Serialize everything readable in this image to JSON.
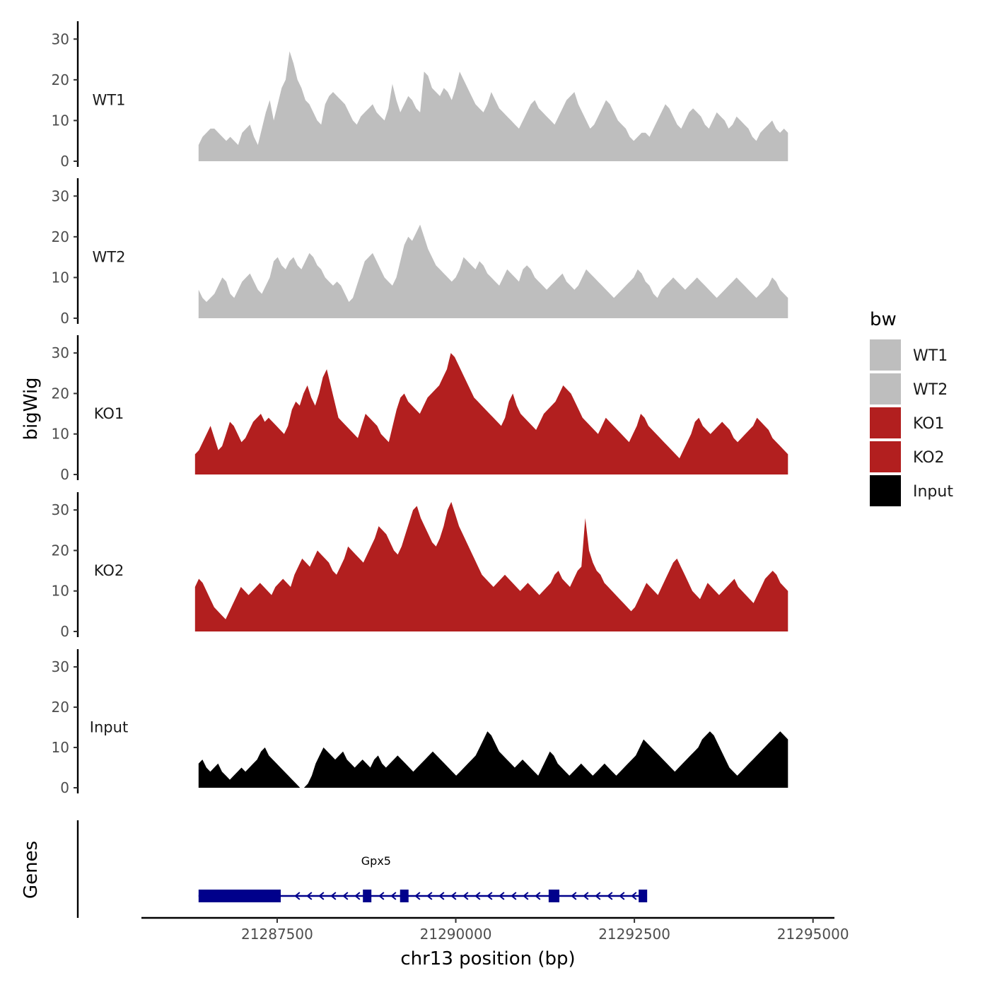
{
  "chart_data": {
    "type": "area",
    "title": "",
    "ylabel_top": "bigWig",
    "ylabel_genes": "Genes",
    "xlabel": "chr13 position (bp)",
    "xlim": [
      21285600,
      21295300
    ],
    "ylim": [
      0,
      33
    ],
    "y_ticks": [
      0,
      10,
      20,
      30
    ],
    "x_ticks": [
      21287500,
      21290000,
      21292500,
      21295000
    ],
    "x_tick_labels": [
      "21287500",
      "21290000",
      "21292500",
      "21295000"
    ],
    "legend": {
      "title": "bw",
      "position": "right",
      "entries": [
        {
          "label": "WT1",
          "color": "#bebebe"
        },
        {
          "label": "WT2",
          "color": "#bebebe"
        },
        {
          "label": "KO1",
          "color": "#b21f1f"
        },
        {
          "label": "KO2",
          "color": "#b21f1f"
        },
        {
          "label": "Input",
          "color": "#000000"
        }
      ]
    },
    "series": [
      {
        "name": "WT1",
        "color": "#bebebe",
        "x_start": 21286400,
        "x_end": 21294650,
        "values": [
          4,
          6,
          7,
          8,
          8,
          7,
          6,
          5,
          6,
          5,
          4,
          7,
          8,
          9,
          6,
          4,
          8,
          12,
          15,
          10,
          14,
          18,
          20,
          27,
          24,
          20,
          18,
          15,
          14,
          12,
          10,
          9,
          14,
          16,
          17,
          16,
          15,
          14,
          12,
          10,
          9,
          11,
          12,
          13,
          14,
          12,
          11,
          10,
          13,
          19,
          15,
          12,
          14,
          16,
          15,
          13,
          12,
          22,
          21,
          18,
          17,
          16,
          18,
          17,
          15,
          18,
          22,
          20,
          18,
          16,
          14,
          13,
          12,
          14,
          17,
          15,
          13,
          12,
          11,
          10,
          9,
          8,
          10,
          12,
          14,
          15,
          13,
          12,
          11,
          10,
          9,
          11,
          13,
          15,
          16,
          17,
          14,
          12,
          10,
          8,
          9,
          11,
          13,
          15,
          14,
          12,
          10,
          9,
          8,
          6,
          5,
          6,
          7,
          7,
          6,
          8,
          10,
          12,
          14,
          13,
          11,
          9,
          8,
          10,
          12,
          13,
          12,
          11,
          9,
          8,
          10,
          12,
          11,
          10,
          8,
          9,
          11,
          10,
          9,
          8,
          6,
          5,
          7,
          8,
          9,
          10,
          8,
          7,
          8,
          7
        ]
      },
      {
        "name": "WT2",
        "color": "#bebebe",
        "x_start": 21286400,
        "x_end": 21294650,
        "values": [
          7,
          5,
          4,
          5,
          6,
          8,
          10,
          9,
          6,
          5,
          7,
          9,
          10,
          11,
          9,
          7,
          6,
          8,
          10,
          14,
          15,
          13,
          12,
          14,
          15,
          13,
          12,
          14,
          16,
          15,
          13,
          12,
          10,
          9,
          8,
          9,
          8,
          6,
          4,
          5,
          8,
          11,
          14,
          15,
          16,
          14,
          12,
          10,
          9,
          8,
          10,
          14,
          18,
          20,
          19,
          21,
          23,
          20,
          17,
          15,
          13,
          12,
          11,
          10,
          9,
          10,
          12,
          15,
          14,
          13,
          12,
          14,
          13,
          11,
          10,
          9,
          8,
          10,
          12,
          11,
          10,
          9,
          12,
          13,
          12,
          10,
          9,
          8,
          7,
          8,
          9,
          10,
          11,
          9,
          8,
          7,
          8,
          10,
          12,
          11,
          10,
          9,
          8,
          7,
          6,
          5,
          6,
          7,
          8,
          9,
          10,
          12,
          11,
          9,
          8,
          6,
          5,
          7,
          8,
          9,
          10,
          9,
          8,
          7,
          8,
          9,
          10,
          9,
          8,
          7,
          6,
          5,
          6,
          7,
          8,
          9,
          10,
          9,
          8,
          7,
          6,
          5,
          6,
          7,
          8,
          10,
          9,
          7,
          6,
          5
        ]
      },
      {
        "name": "KO1",
        "color": "#b21f1f",
        "x_start": 21286350,
        "x_end": 21294650,
        "values": [
          5,
          6,
          8,
          10,
          12,
          9,
          6,
          7,
          10,
          13,
          12,
          10,
          8,
          9,
          11,
          13,
          14,
          15,
          13,
          14,
          13,
          12,
          11,
          10,
          12,
          16,
          18,
          17,
          20,
          22,
          19,
          17,
          20,
          24,
          26,
          22,
          18,
          14,
          13,
          12,
          11,
          10,
          9,
          12,
          15,
          14,
          13,
          12,
          10,
          9,
          8,
          12,
          16,
          19,
          20,
          18,
          17,
          16,
          15,
          17,
          19,
          20,
          21,
          22,
          24,
          26,
          30,
          29,
          27,
          25,
          23,
          21,
          19,
          18,
          17,
          16,
          15,
          14,
          13,
          12,
          14,
          18,
          20,
          17,
          15,
          14,
          13,
          12,
          11,
          13,
          15,
          16,
          17,
          18,
          20,
          22,
          21,
          20,
          18,
          16,
          14,
          13,
          12,
          11,
          10,
          12,
          14,
          13,
          12,
          11,
          10,
          9,
          8,
          10,
          12,
          15,
          14,
          12,
          11,
          10,
          9,
          8,
          7,
          6,
          5,
          4,
          6,
          8,
          10,
          13,
          14,
          12,
          11,
          10,
          11,
          12,
          13,
          12,
          11,
          9,
          8,
          9,
          10,
          11,
          12,
          14,
          13,
          12,
          11,
          9,
          8,
          7,
          6,
          5
        ]
      },
      {
        "name": "KO2",
        "color": "#b21f1f",
        "x_start": 21286350,
        "x_end": 21294650,
        "values": [
          11,
          13,
          12,
          10,
          8,
          6,
          5,
          4,
          3,
          5,
          7,
          9,
          11,
          10,
          9,
          10,
          11,
          12,
          11,
          10,
          9,
          11,
          12,
          13,
          12,
          11,
          14,
          16,
          18,
          17,
          16,
          18,
          20,
          19,
          18,
          17,
          15,
          14,
          16,
          18,
          21,
          20,
          19,
          18,
          17,
          19,
          21,
          23,
          26,
          25,
          24,
          22,
          20,
          19,
          21,
          24,
          27,
          30,
          31,
          28,
          26,
          24,
          22,
          21,
          23,
          26,
          30,
          32,
          29,
          26,
          24,
          22,
          20,
          18,
          16,
          14,
          13,
          12,
          11,
          12,
          13,
          14,
          13,
          12,
          11,
          10,
          11,
          12,
          11,
          10,
          9,
          10,
          11,
          12,
          14,
          15,
          13,
          12,
          11,
          13,
          15,
          16,
          28,
          20,
          17,
          15,
          14,
          12,
          11,
          10,
          9,
          8,
          7,
          6,
          5,
          6,
          8,
          10,
          12,
          11,
          10,
          9,
          11,
          13,
          15,
          17,
          18,
          16,
          14,
          12,
          10,
          9,
          8,
          10,
          12,
          11,
          10,
          9,
          10,
          11,
          12,
          13,
          11,
          10,
          9,
          8,
          7,
          9,
          11,
          13,
          14,
          15,
          14,
          12,
          11,
          10
        ]
      },
      {
        "name": "Input",
        "color": "#000000",
        "x_start": 21286400,
        "x_end": 21294650,
        "values": [
          6,
          7,
          5,
          4,
          5,
          6,
          4,
          3,
          2,
          3,
          4,
          5,
          4,
          5,
          6,
          7,
          9,
          10,
          8,
          7,
          6,
          5,
          4,
          3,
          2,
          1,
          0,
          0,
          1,
          3,
          6,
          8,
          10,
          9,
          8,
          7,
          8,
          9,
          7,
          6,
          5,
          6,
          7,
          6,
          5,
          7,
          8,
          6,
          5,
          6,
          7,
          8,
          7,
          6,
          5,
          4,
          5,
          6,
          7,
          8,
          9,
          8,
          7,
          6,
          5,
          4,
          3,
          4,
          5,
          6,
          7,
          8,
          10,
          12,
          14,
          13,
          11,
          9,
          8,
          7,
          6,
          5,
          6,
          7,
          6,
          5,
          4,
          3,
          5,
          7,
          9,
          8,
          6,
          5,
          4,
          3,
          4,
          5,
          6,
          5,
          4,
          3,
          4,
          5,
          6,
          5,
          4,
          3,
          4,
          5,
          6,
          7,
          8,
          10,
          12,
          11,
          10,
          9,
          8,
          7,
          6,
          5,
          4,
          5,
          6,
          7,
          8,
          9,
          10,
          12,
          13,
          14,
          13,
          11,
          9,
          7,
          5,
          4,
          3,
          4,
          5,
          6,
          7,
          8,
          9,
          10,
          11,
          12,
          13,
          14,
          13,
          12
        ]
      }
    ],
    "genes": [
      {
        "name": "Gpx5",
        "strand": "-",
        "start": 21286400,
        "end": 21292650,
        "exons": [
          [
            21286400,
            21287550
          ],
          [
            21288700,
            21288800
          ],
          [
            21289220,
            21289330
          ],
          [
            21291300,
            21291450
          ],
          [
            21292560,
            21292650
          ]
        ]
      }
    ]
  }
}
